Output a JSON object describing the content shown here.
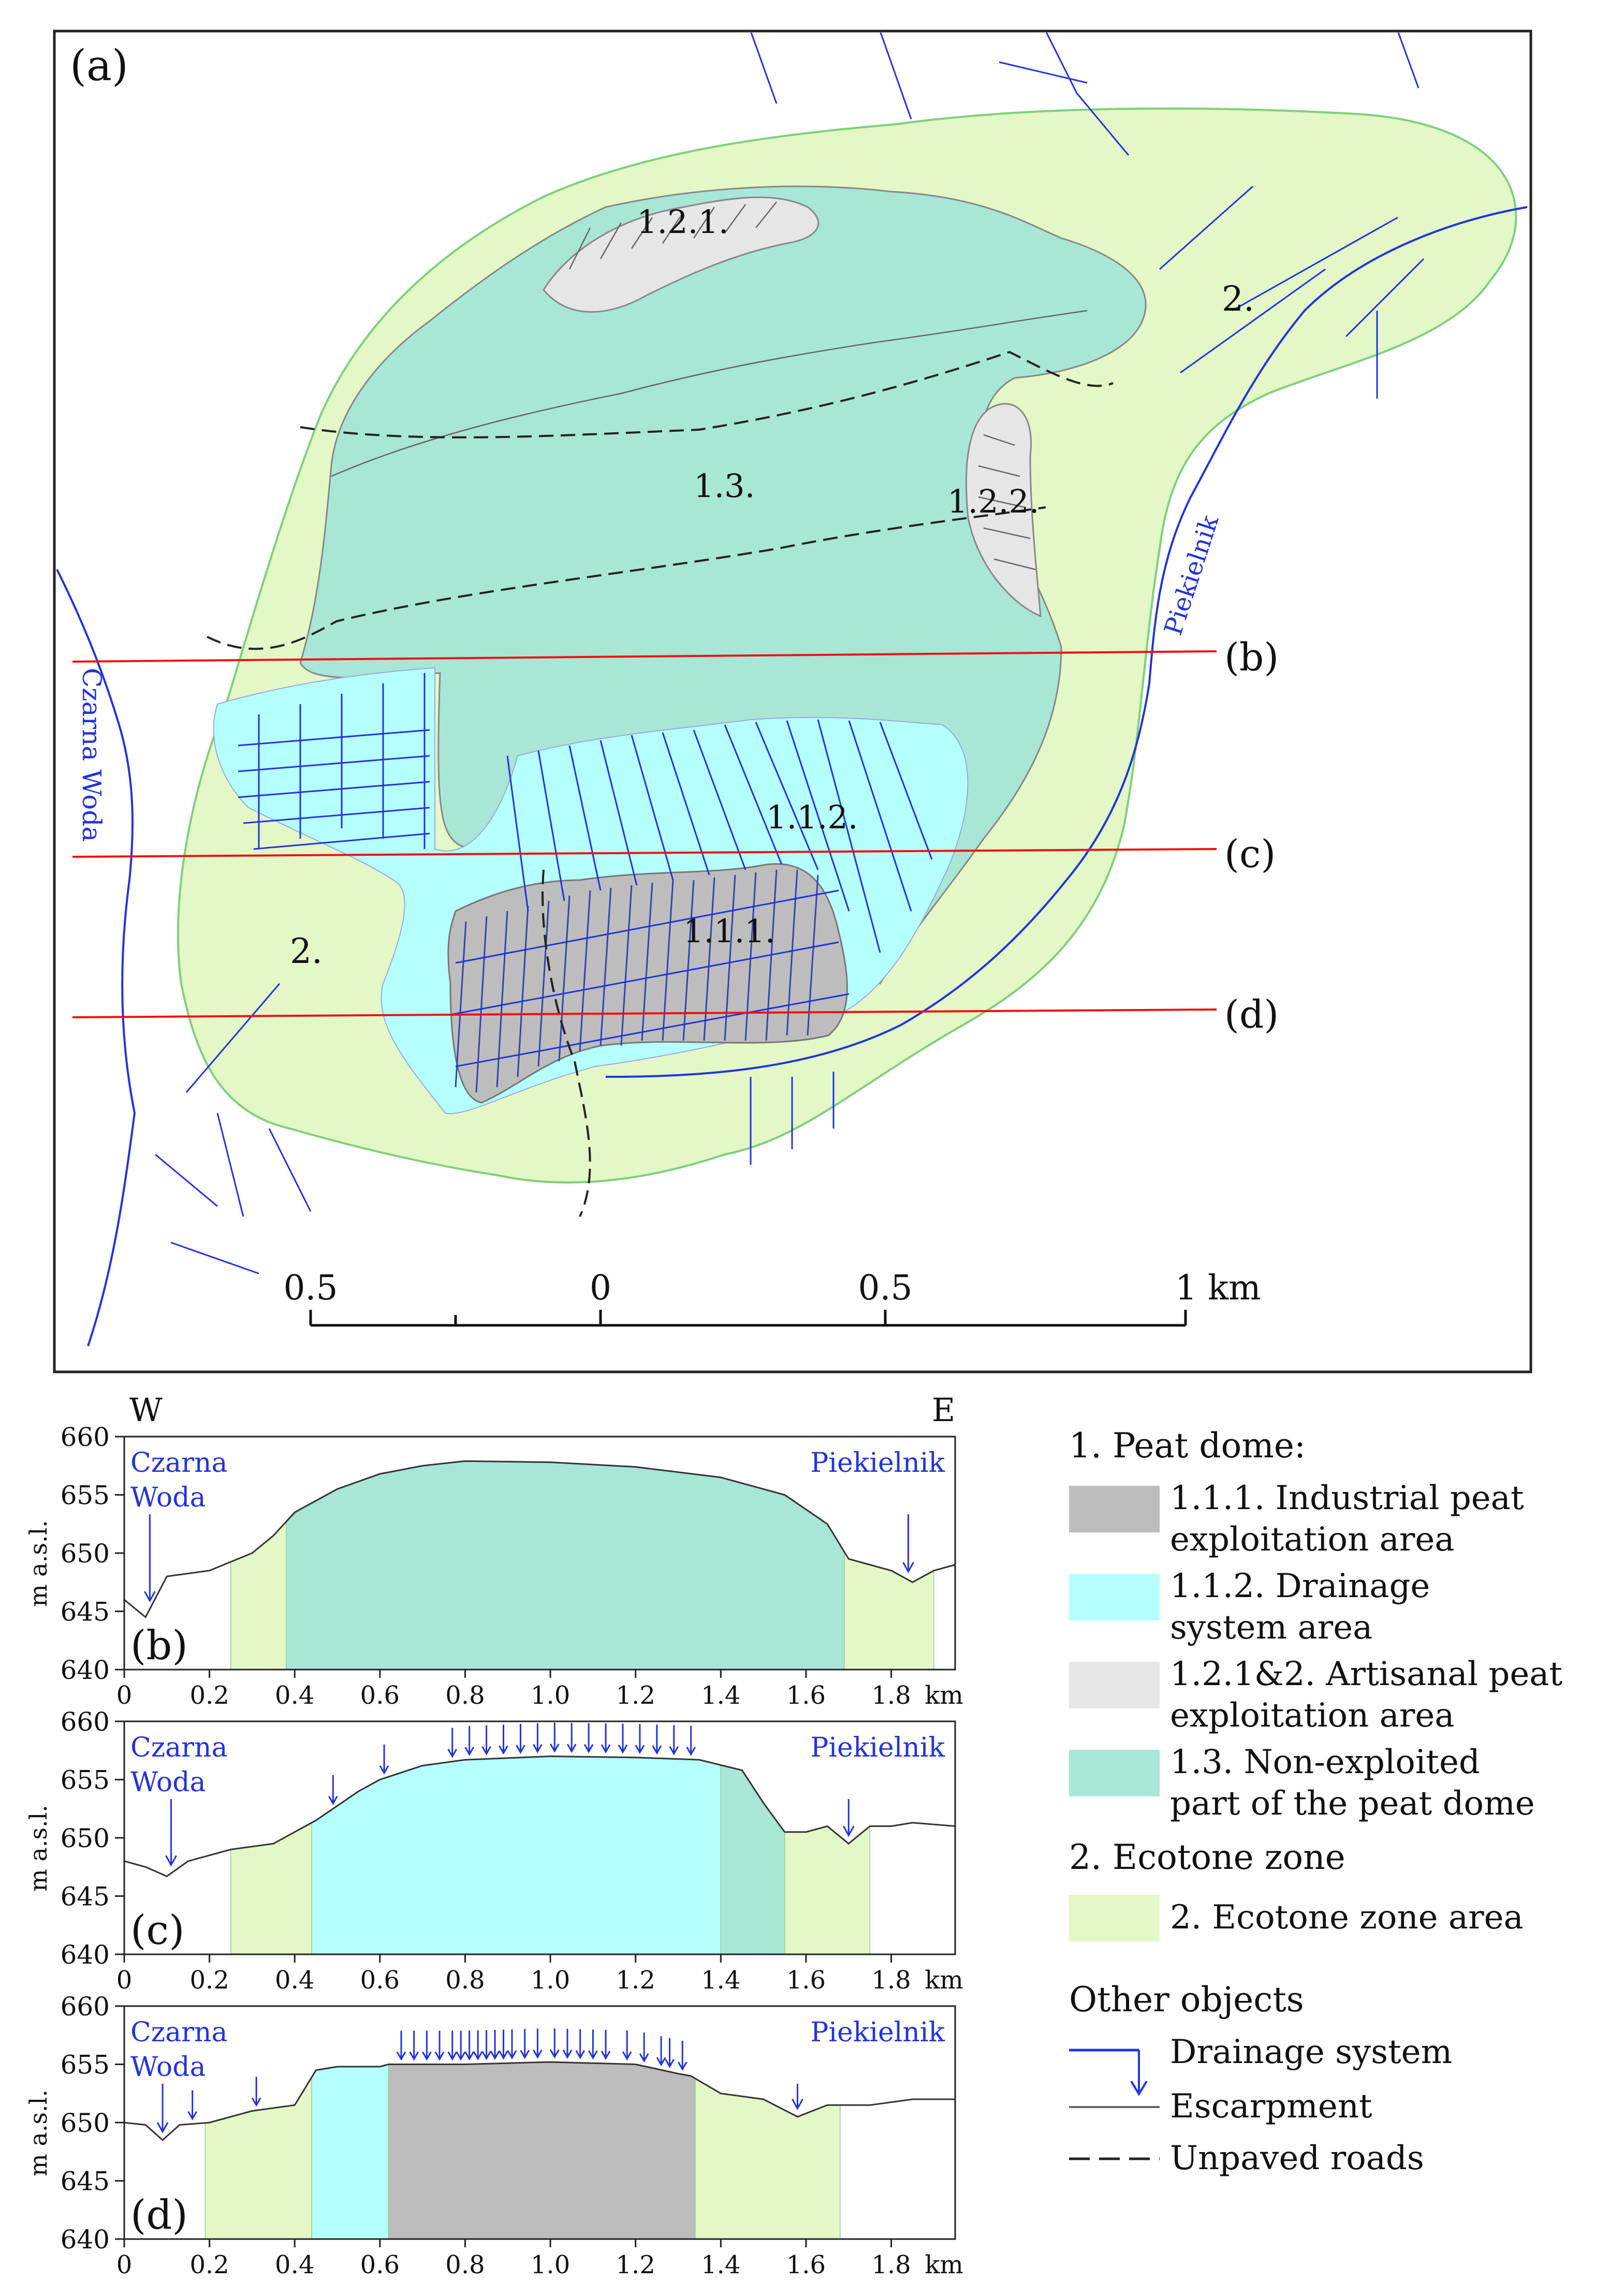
{
  "panel_a": {
    "label": "(a)",
    "zone_labels": {
      "z111": "1.1.1.",
      "z112": "1.1.2.",
      "z121": "1.2.1.",
      "z122": "1.2.2.",
      "z13": "1.3.",
      "z2_east": "2.",
      "z2_west": "2."
    },
    "river_labels": {
      "west": "Czarna Woda",
      "east": "Piekielnik"
    },
    "section_labels": [
      "(b)",
      "(c)",
      "(d)"
    ],
    "scale_bar": {
      "ticks": [
        "0.5",
        "0",
        "0.5",
        "1 km"
      ]
    }
  },
  "profiles": {
    "direction_w": "W",
    "direction_e": "E",
    "ylabel": "m a.s.l.",
    "x_ticks": [
      "0",
      "0.2",
      "0.4",
      "0.6",
      "0.8",
      "1.0",
      "1.2",
      "1.4",
      "1.6",
      "1.8"
    ],
    "x_unit": "km",
    "y_ticks": [
      "660",
      "655",
      "650",
      "645",
      "640"
    ],
    "river_w_line1": "Czarna",
    "river_w_line2": "Woda",
    "river_e": "Piekielnik",
    "panels": [
      {
        "label": "(b)"
      },
      {
        "label": "(c)"
      },
      {
        "label": "(d)"
      }
    ]
  },
  "chart_data": [
    {
      "type": "area",
      "panel": "(b)",
      "xlabel": "km",
      "ylabel": "m a.s.l.",
      "xlim": [
        0,
        1.95
      ],
      "ylim": [
        640,
        660
      ],
      "profile": {
        "x": [
          0,
          0.05,
          0.1,
          0.2,
          0.3,
          0.35,
          0.4,
          0.5,
          0.6,
          0.7,
          0.8,
          1.0,
          1.2,
          1.4,
          1.55,
          1.65,
          1.7,
          1.75,
          1.8,
          1.85,
          1.9,
          1.95
        ],
        "y": [
          646,
          644.5,
          648,
          648.5,
          650,
          651.5,
          653.5,
          655.5,
          656.8,
          657.5,
          657.9,
          657.8,
          657.4,
          656.5,
          655,
          652.5,
          649.5,
          649,
          648.5,
          647.5,
          648.5,
          649
        ]
      },
      "zones": [
        {
          "zone": "2",
          "x": [
            0.25,
            0.38
          ]
        },
        {
          "zone": "1.3",
          "x": [
            0.38,
            1.69
          ]
        },
        {
          "zone": "2",
          "x": [
            1.69,
            1.9
          ]
        }
      ],
      "river_markers": [
        {
          "name": "Czarna Woda",
          "x": 0.06
        },
        {
          "name": "Piekielnik",
          "x": 1.84
        }
      ],
      "drainage_markers": []
    },
    {
      "type": "area",
      "panel": "(c)",
      "xlabel": "km",
      "ylabel": "m a.s.l.",
      "xlim": [
        0,
        1.95
      ],
      "ylim": [
        640,
        660
      ],
      "profile": {
        "x": [
          0,
          0.05,
          0.1,
          0.15,
          0.25,
          0.35,
          0.45,
          0.55,
          0.6,
          0.7,
          0.8,
          1.0,
          1.2,
          1.35,
          1.45,
          1.5,
          1.55,
          1.6,
          1.65,
          1.7,
          1.75,
          1.8,
          1.85,
          1.95
        ],
        "y": [
          648,
          647.5,
          646.7,
          648,
          649,
          649.5,
          651.5,
          654,
          655,
          656.2,
          656.7,
          657,
          656.9,
          656.7,
          655.8,
          653,
          650.5,
          650.5,
          651,
          649.5,
          651,
          651,
          651.3,
          651
        ]
      },
      "zones": [
        {
          "zone": "2",
          "x": [
            0.25,
            0.44
          ]
        },
        {
          "zone": "1.1.2",
          "x": [
            0.44,
            1.4
          ]
        },
        {
          "zone": "1.3",
          "x": [
            1.4,
            1.55
          ]
        },
        {
          "zone": "2",
          "x": [
            1.55,
            1.75
          ]
        }
      ],
      "river_markers": [
        {
          "name": "Czarna Woda",
          "x": 0.11
        },
        {
          "name": "Piekielnik",
          "x": 1.7
        }
      ],
      "drainage_markers": [
        0.49,
        0.61,
        0.77,
        0.81,
        0.85,
        0.89,
        0.93,
        0.97,
        1.01,
        1.05,
        1.09,
        1.13,
        1.17,
        1.21,
        1.25,
        1.29,
        1.33
      ]
    },
    {
      "type": "area",
      "panel": "(d)",
      "xlabel": "km",
      "ylabel": "m a.s.l.",
      "xlim": [
        0,
        1.95
      ],
      "ylim": [
        640,
        660
      ],
      "profile": {
        "x": [
          0,
          0.05,
          0.09,
          0.13,
          0.2,
          0.3,
          0.4,
          0.45,
          0.5,
          0.6,
          0.62,
          0.8,
          1.0,
          1.2,
          1.3,
          1.33,
          1.4,
          1.5,
          1.58,
          1.65,
          1.75,
          1.85,
          1.95
        ],
        "y": [
          650,
          649.8,
          648.5,
          649.8,
          650,
          651,
          651.5,
          654.5,
          654.8,
          654.8,
          655,
          655,
          655.2,
          655,
          654.2,
          654,
          652.5,
          652,
          650.5,
          651.5,
          651.5,
          652,
          652
        ]
      },
      "zones": [
        {
          "zone": "2",
          "x": [
            0.19,
            0.44
          ]
        },
        {
          "zone": "1.1.2",
          "x": [
            0.44,
            0.62
          ]
        },
        {
          "zone": "1.1.1",
          "x": [
            0.62,
            1.34
          ]
        },
        {
          "zone": "2",
          "x": [
            1.34,
            1.68
          ]
        }
      ],
      "river_markers": [
        {
          "name": "Czarna Woda",
          "x": 0.09
        },
        {
          "name": "Piekielnik",
          "x": 1.58
        }
      ],
      "drainage_markers": [
        0.16,
        0.31,
        0.65,
        0.68,
        0.71,
        0.74,
        0.77,
        0.79,
        0.81,
        0.83,
        0.85,
        0.87,
        0.89,
        0.91,
        0.94,
        0.97,
        1.01,
        1.04,
        1.07,
        1.1,
        1.13,
        1.18,
        1.22,
        1.26,
        1.28,
        1.31
      ]
    }
  ],
  "legend": {
    "group1_title": "1. Peat dome:",
    "items1": [
      {
        "color": "#bdbdbd",
        "line1": "1.1.1. Industrial peat",
        "line2": "exploitation area"
      },
      {
        "color": "#b6ffff",
        "line1": "1.1.2. Drainage",
        "line2": "system area"
      },
      {
        "color": "#e6e6e6",
        "line1": "1.2.1&2. Artisanal peat",
        "line2": "exploitation area"
      },
      {
        "color": "#a8e6d6",
        "line1": "1.3. Non-exploited",
        "line2": "part of the peat dome"
      }
    ],
    "group2_title": "2. Ecotone zone",
    "items2": [
      {
        "color": "#e4f7c6",
        "line1": "2. Ecotone zone area"
      }
    ],
    "group3_title": "Other objects",
    "items3": [
      {
        "symbol": "drainage",
        "label": "Drainage system"
      },
      {
        "symbol": "escarpment",
        "label": "Escarpment"
      },
      {
        "symbol": "road",
        "label": "Unpaved roads"
      }
    ]
  },
  "colors": {
    "industrial": "#bdbdbd",
    "drainage_area": "#b6ffff",
    "artisanal": "#e6e6e6",
    "non_exploited": "#a8e6d6",
    "ecotone": "#e4f7c6",
    "water": "#2233dd",
    "section_line": "#ee1111"
  }
}
